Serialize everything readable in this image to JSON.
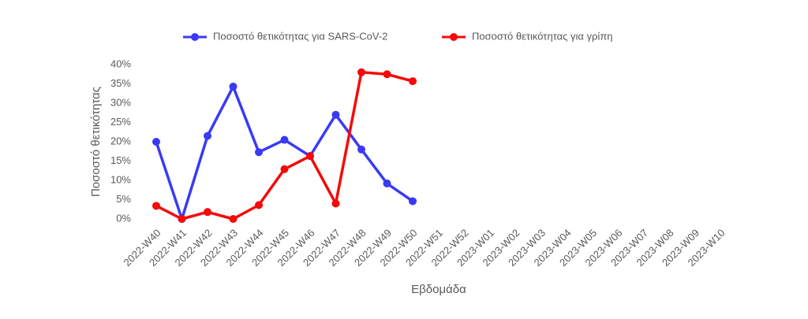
{
  "chart_data": {
    "type": "line",
    "y_label": "Ποσοστό θετικότητας",
    "x_label": "Εβδομάδα",
    "categories": [
      "2022-W40",
      "2022-W41",
      "2022-W42",
      "2022-W43",
      "2022-W44",
      "2022-W45",
      "2022-W46",
      "2022-W47",
      "2022-W48",
      "2022-W49",
      "2022-W50",
      "2022-W51",
      "2022-W52",
      "2023-W01",
      "2023-W02",
      "2023-W03",
      "2023-W04",
      "2023-W05",
      "2023-W06",
      "2023-W07",
      "2023-W08",
      "2023-W09",
      "2023-W10"
    ],
    "series": [
      {
        "name": "Ποσοστό θετικότητας για SARS-CoV-2",
        "color": "#3a3af5",
        "values": [
          20,
          0,
          21.5,
          34.3,
          17.3,
          20.5,
          16.3,
          27,
          18,
          9.2,
          4.6,
          null,
          null,
          null,
          null,
          null,
          null,
          null,
          null,
          null,
          null,
          null,
          null
        ]
      },
      {
        "name": "Ποσοστό θετικότητας για γρίπη",
        "color": "#f50a0a",
        "values": [
          3.4,
          0,
          1.8,
          0,
          3.6,
          12.9,
          16.3,
          4,
          38,
          37.5,
          35.7,
          null,
          null,
          null,
          null,
          null,
          null,
          null,
          null,
          null,
          null,
          null,
          null
        ]
      }
    ],
    "ylim": [
      0,
      40
    ],
    "yticks": [
      {
        "value": 0,
        "label": "0%"
      },
      {
        "value": 5,
        "label": "5%"
      },
      {
        "value": 10,
        "label": "10%"
      },
      {
        "value": 15,
        "label": "15%"
      },
      {
        "value": 20,
        "label": "20%"
      },
      {
        "value": 25,
        "label": "25%"
      },
      {
        "value": 30,
        "label": "30%"
      },
      {
        "value": 35,
        "label": "35%"
      },
      {
        "value": 40,
        "label": "40%"
      }
    ],
    "legend": "top"
  }
}
